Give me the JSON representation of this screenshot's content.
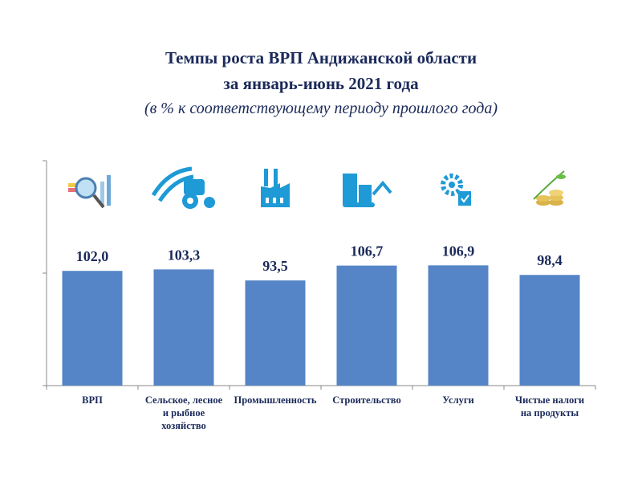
{
  "chart_data": {
    "type": "bar",
    "title": "Темпы роста ВРП Андижанской области",
    "title_line2": "за январь-июнь 2021 года",
    "subtitle": "(в % к соответствующему периоду прошлого года)",
    "categories": [
      [
        "ВРП"
      ],
      [
        "Сельское, лесное",
        "и  рыбное",
        "хозяйство"
      ],
      [
        "Промышленность"
      ],
      [
        "Строительство"
      ],
      [
        "Услуги"
      ],
      [
        "Чистые налоги",
        "на продукты"
      ]
    ],
    "values": [
      102.0,
      103.3,
      93.5,
      106.7,
      106.9,
      98.4
    ],
    "value_labels": [
      "102,0",
      "103,3",
      "93,5",
      "106,7",
      "106,9",
      "98,4"
    ],
    "icons": [
      "magnifier-chart-icon",
      "tractor-field-icon",
      "factory-icon",
      "construction-excavator-icon",
      "gear-services-icon",
      "coins-growth-icon"
    ],
    "xlabel": "",
    "ylabel": "",
    "ylim": [
      0,
      200
    ],
    "yticks": [
      0,
      100,
      200
    ],
    "grid": false,
    "bar_color": "#5585c7",
    "icon_color": "#1e9ad6"
  }
}
